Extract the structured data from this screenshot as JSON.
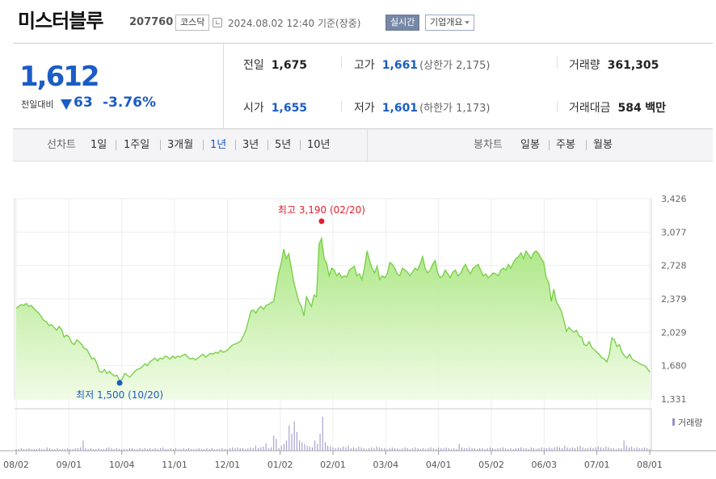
{
  "header": {
    "stock_name": "미스터블루",
    "stock_code": "207760",
    "market_badge": "코스닥",
    "datetime": "2024.08.02 12:40",
    "basis": "기준(장중)",
    "realtime_badge": "실시간",
    "company_dropdown": "기업개요"
  },
  "quote": {
    "price": "1,612",
    "change_label": "전일대비",
    "change_value": "63",
    "change_percent": "-3.76%",
    "prev_close_label": "전일",
    "prev_close": "1,675",
    "open_label": "시가",
    "open": "1,655",
    "high_label": "고가",
    "high": "1,661",
    "upper_limit": "(상한가 2,175)",
    "low_label": "저가",
    "low": "1,601",
    "lower_limit": "(하한가 1,173)",
    "volume_label": "거래량",
    "volume": "361,305",
    "amount_label": "거래대금",
    "amount": "584",
    "amount_unit": "백만",
    "down_color": "#1b5cc6"
  },
  "periods": {
    "label": "선차트",
    "items": [
      "1일",
      "1주일",
      "3개월",
      "1년",
      "3년",
      "5년",
      "10년"
    ],
    "active": "1년",
    "candle_label": "봉차트",
    "candle_items": [
      "일봉",
      "주봉",
      "월봉"
    ]
  },
  "chart_data": {
    "type": "area",
    "x_ticks": [
      "08/02",
      "09/01",
      "10/04",
      "11/01",
      "12/01",
      "01/02",
      "02/01",
      "03/04",
      "04/01",
      "05/02",
      "06/03",
      "07/01",
      "08/01"
    ],
    "y_ticks": [
      "3,426",
      "3,077",
      "2,728",
      "2,379",
      "2,029",
      "1,680",
      "1,331"
    ],
    "ylim": [
      1331,
      3426
    ],
    "high_annotation": "최고 3,190 (02/20)",
    "low_annotation": "최저 1,500 (10/20)",
    "high_value": 3190,
    "low_value": 1500,
    "volume_label": "거래량",
    "fill_color": "#b6ec8c",
    "line_color": "#7bd04a",
    "high_color": "#e0212e",
    "low_color": "#1b5cc6",
    "series": [
      {
        "values": [
          2280,
          2300,
          2320,
          2310,
          2330,
          2300,
          2310,
          2280,
          2250,
          2230,
          2190,
          2150,
          2140,
          2100,
          2110,
          2080,
          2050,
          2090,
          2060,
          1980,
          2000,
          1980,
          1920,
          1900,
          1950,
          1930,
          1900,
          1860,
          1850,
          1800,
          1750,
          1760,
          1700,
          1620,
          1610,
          1640,
          1600,
          1620,
          1590,
          1570,
          1580,
          1520,
          1540,
          1600,
          1580,
          1560,
          1590,
          1620,
          1640,
          1650,
          1670,
          1700,
          1680,
          1720,
          1740,
          1760,
          1730,
          1760,
          1750,
          1780,
          1770,
          1750,
          1780,
          1760,
          1780,
          1770,
          1790,
          1800,
          1770,
          1750,
          1760,
          1740,
          1760,
          1780,
          1800,
          1770,
          1790,
          1810,
          1800,
          1820,
          1810,
          1840,
          1820,
          1830,
          1850,
          1880,
          1900,
          1910,
          1920,
          1940,
          1990,
          2050,
          2150,
          2250,
          2260,
          2230,
          2280,
          2300,
          2270,
          2310,
          2320,
          2340,
          2350,
          2500,
          2650,
          2750,
          2900,
          2800,
          2850,
          2700,
          2550,
          2450,
          2350,
          2300,
          2200,
          2400,
          2350,
          2300,
          2420,
          2400,
          2950,
          3010,
          2800,
          2750,
          2620,
          2700,
          2680,
          2620,
          2650,
          2600,
          2620,
          2610,
          2680,
          2700,
          2720,
          2620,
          2640,
          2580,
          2700,
          2880,
          2780,
          2700,
          2650,
          2720,
          2580,
          2620,
          2600,
          2640,
          2760,
          2740,
          2700,
          2640,
          2620,
          2700,
          2680,
          2660,
          2620,
          2660,
          2700,
          2680,
          2740,
          2820,
          2700,
          2650,
          2680,
          2740,
          2780,
          2650,
          2600,
          2620,
          2680,
          2640,
          2600,
          2660,
          2680,
          2620,
          2640,
          2700,
          2740,
          2680,
          2640,
          2700,
          2720,
          2740,
          2680,
          2620,
          2640,
          2600,
          2620,
          2650,
          2640,
          2620,
          2680,
          2700,
          2680,
          2740,
          2700,
          2760,
          2800,
          2820,
          2860,
          2800,
          2880,
          2840,
          2800,
          2860,
          2880,
          2850,
          2800,
          2760,
          2600,
          2550,
          2350,
          2480,
          2350,
          2300,
          2250,
          2150,
          2040,
          2080,
          2050,
          2030,
          2050,
          1990,
          1980,
          1900,
          1890,
          1930,
          1870,
          1850,
          1820,
          1800,
          1760,
          1750,
          1720,
          1800,
          1970,
          1950,
          1880,
          1900,
          1820,
          1780,
          1760,
          1800,
          1750,
          1730,
          1720,
          1700,
          1690,
          1680,
          1650,
          1612
        ]
      }
    ],
    "volume_series": [
      2,
      2,
      3,
      2,
      2,
      3,
      2,
      2,
      2,
      3,
      2,
      2,
      4,
      3,
      2,
      2,
      3,
      2,
      2,
      2,
      3,
      2,
      2,
      3,
      3,
      4,
      12,
      3,
      2,
      3,
      2,
      2,
      3,
      2,
      2,
      3,
      4,
      3,
      2,
      3,
      2,
      2,
      2,
      2,
      3,
      3,
      2,
      2,
      3,
      2,
      3,
      2,
      3,
      2,
      3,
      2,
      3,
      4,
      2,
      2,
      3,
      2,
      3,
      2,
      2,
      3,
      2,
      3,
      2,
      2,
      2,
      3,
      2,
      2,
      3,
      2,
      3,
      2,
      2,
      2,
      3,
      2,
      2,
      3,
      4,
      3,
      4,
      3,
      3,
      2,
      3,
      4,
      3,
      6,
      3,
      4,
      5,
      9,
      3,
      4,
      18,
      14,
      3,
      6,
      8,
      12,
      30,
      20,
      35,
      22,
      12,
      10,
      8,
      6,
      5,
      4,
      12,
      8,
      20,
      40,
      10,
      6,
      5,
      4,
      3,
      4,
      3,
      5,
      4,
      6,
      3,
      4,
      3,
      5,
      4,
      3,
      2,
      3,
      4,
      3,
      5,
      4,
      3,
      3,
      2,
      3,
      4,
      3,
      3,
      2,
      3,
      4,
      3,
      2,
      3,
      4,
      3,
      2,
      3,
      2,
      3,
      4,
      3,
      2,
      4,
      3,
      3,
      4,
      3,
      2,
      3,
      2,
      8,
      4,
      3,
      3,
      4,
      3,
      3,
      2,
      3,
      3,
      2,
      3,
      4,
      3,
      2,
      3,
      3,
      4,
      3,
      2,
      3,
      2,
      3,
      3,
      4,
      3,
      3,
      2,
      4,
      3,
      2,
      3,
      4,
      3,
      3,
      4,
      3,
      4,
      5,
      4,
      3,
      6,
      4,
      3,
      4,
      3,
      5,
      6,
      4,
      3,
      3,
      4,
      3,
      4,
      5,
      4,
      3,
      5,
      4,
      3,
      3,
      2,
      3,
      3,
      12,
      6,
      4,
      5,
      3,
      4,
      3,
      3,
      4,
      3,
      2
    ]
  }
}
